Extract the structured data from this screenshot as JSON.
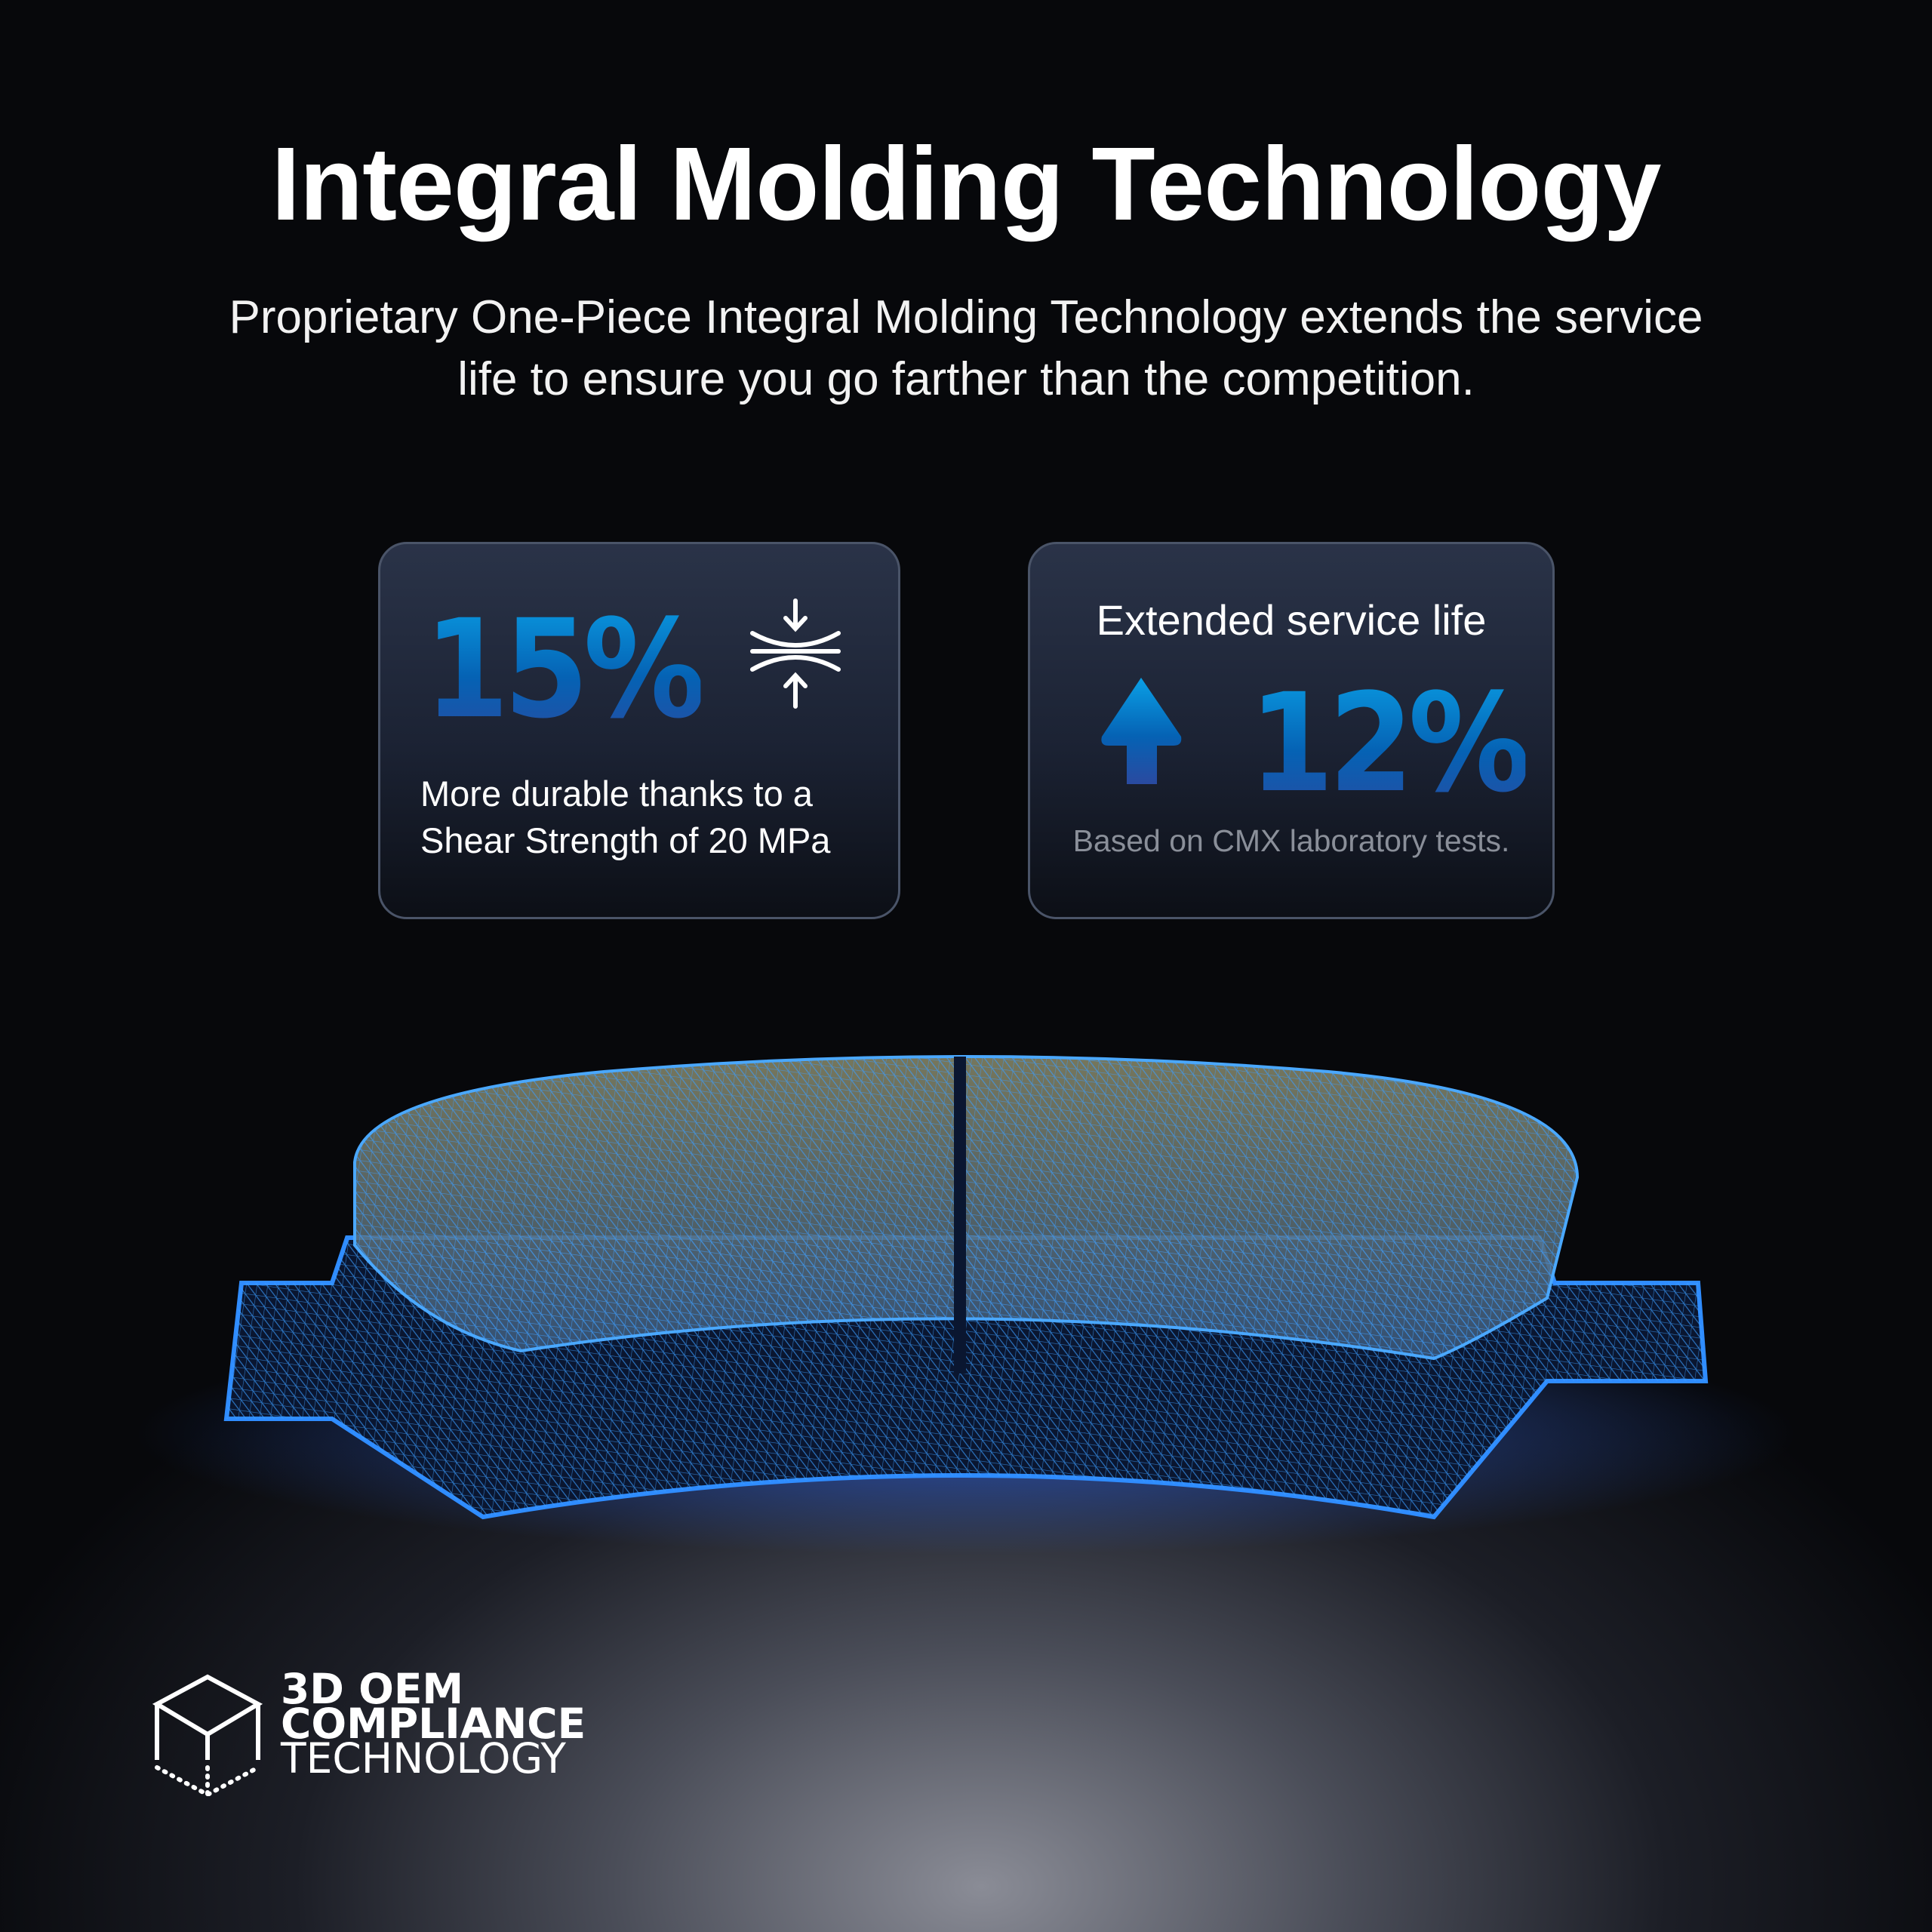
{
  "header": {
    "title": "Integral Molding Technology",
    "subtitle_line1": "Proprietary One-Piece Integral Molding Technology extends the service",
    "subtitle_line2": "life to ensure you go farther than the competition."
  },
  "cards": [
    {
      "value": "15%",
      "icon": "compression-icon",
      "desc_line1": "More durable thanks to a",
      "desc_line2": "Shear Strength of 20 MPa"
    },
    {
      "heading": "Extended service life",
      "icon": "arrow-up-icon",
      "value": "12%",
      "note": "Based on CMX laboratory tests."
    }
  ],
  "logo": {
    "line1": "3D OEM",
    "line2": "COMPLIANCE",
    "line3": "TECHNOLOGY",
    "icon": "cube-icon"
  },
  "colors": {
    "accent_top": "#0aa0e6",
    "accent_bottom": "#2a4aa0",
    "wire": "#2f8cff"
  }
}
